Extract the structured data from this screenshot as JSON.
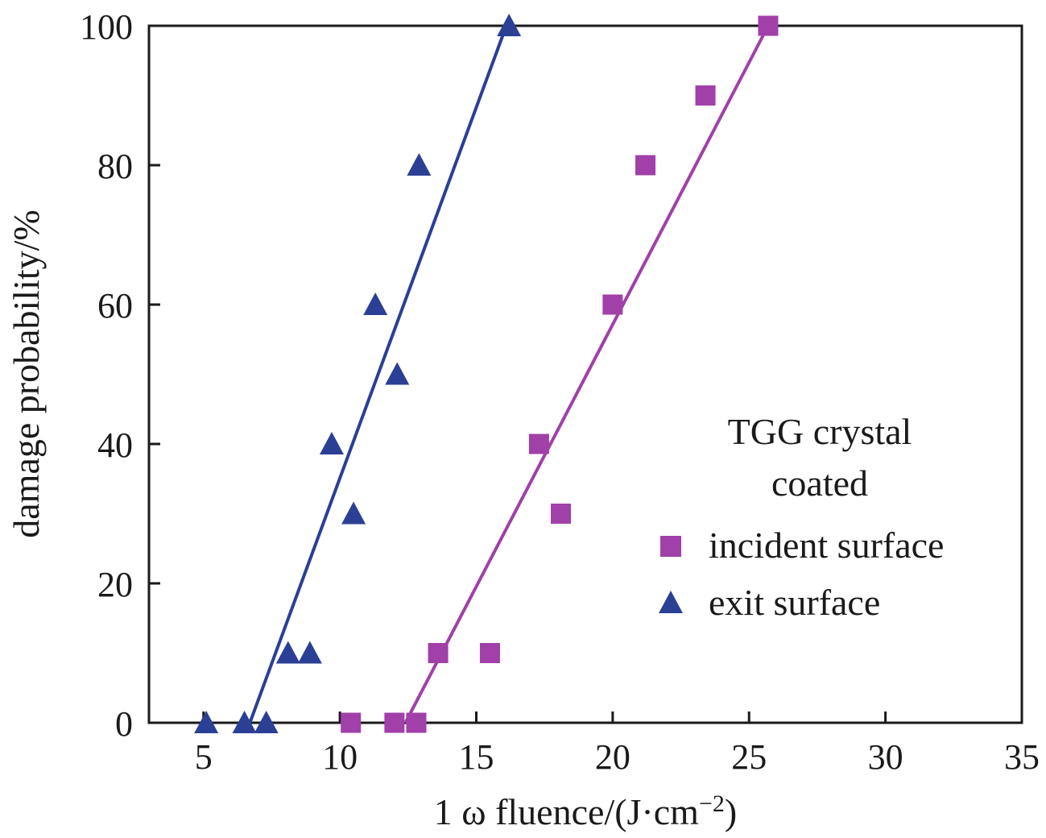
{
  "chart_data": {
    "type": "scatter",
    "title": "",
    "xlabel": "1 ω fluence/(J·cm",
    "xlabel_sup": "−2",
    "xlabel_end": ")",
    "ylabel": "damage probability/%",
    "xlim": [
      3,
      35
    ],
    "ylim": [
      0,
      100
    ],
    "xticks": [
      5,
      10,
      15,
      20,
      25,
      30,
      35
    ],
    "yticks": [
      0,
      20,
      40,
      60,
      80,
      100
    ],
    "grid": false,
    "legend_position": "center-right",
    "legend_title": [
      "TGG crystal",
      "coated"
    ],
    "series": [
      {
        "name": "incident surface",
        "marker": "square",
        "color": "#a040a8",
        "x": [
          10.4,
          12.0,
          12.8,
          13.6,
          15.5,
          17.3,
          18.1,
          20.0,
          21.2,
          23.4,
          25.7
        ],
        "y": [
          0,
          0,
          0,
          10,
          10,
          40,
          30,
          60,
          80,
          90,
          100
        ],
        "fit": {
          "x": [
            12.4,
            25.7
          ],
          "y": [
            0,
            100
          ]
        }
      },
      {
        "name": "exit surface",
        "marker": "triangle",
        "color": "#2b3f94",
        "x": [
          5.1,
          6.5,
          7.3,
          8.1,
          8.9,
          9.7,
          10.5,
          11.3,
          12.1,
          12.9,
          16.2
        ],
        "y": [
          0,
          0,
          0,
          10,
          10,
          40,
          30,
          60,
          50,
          80,
          100
        ],
        "fit": {
          "x": [
            6.7,
            16.1
          ],
          "y": [
            0,
            100
          ]
        }
      }
    ]
  }
}
